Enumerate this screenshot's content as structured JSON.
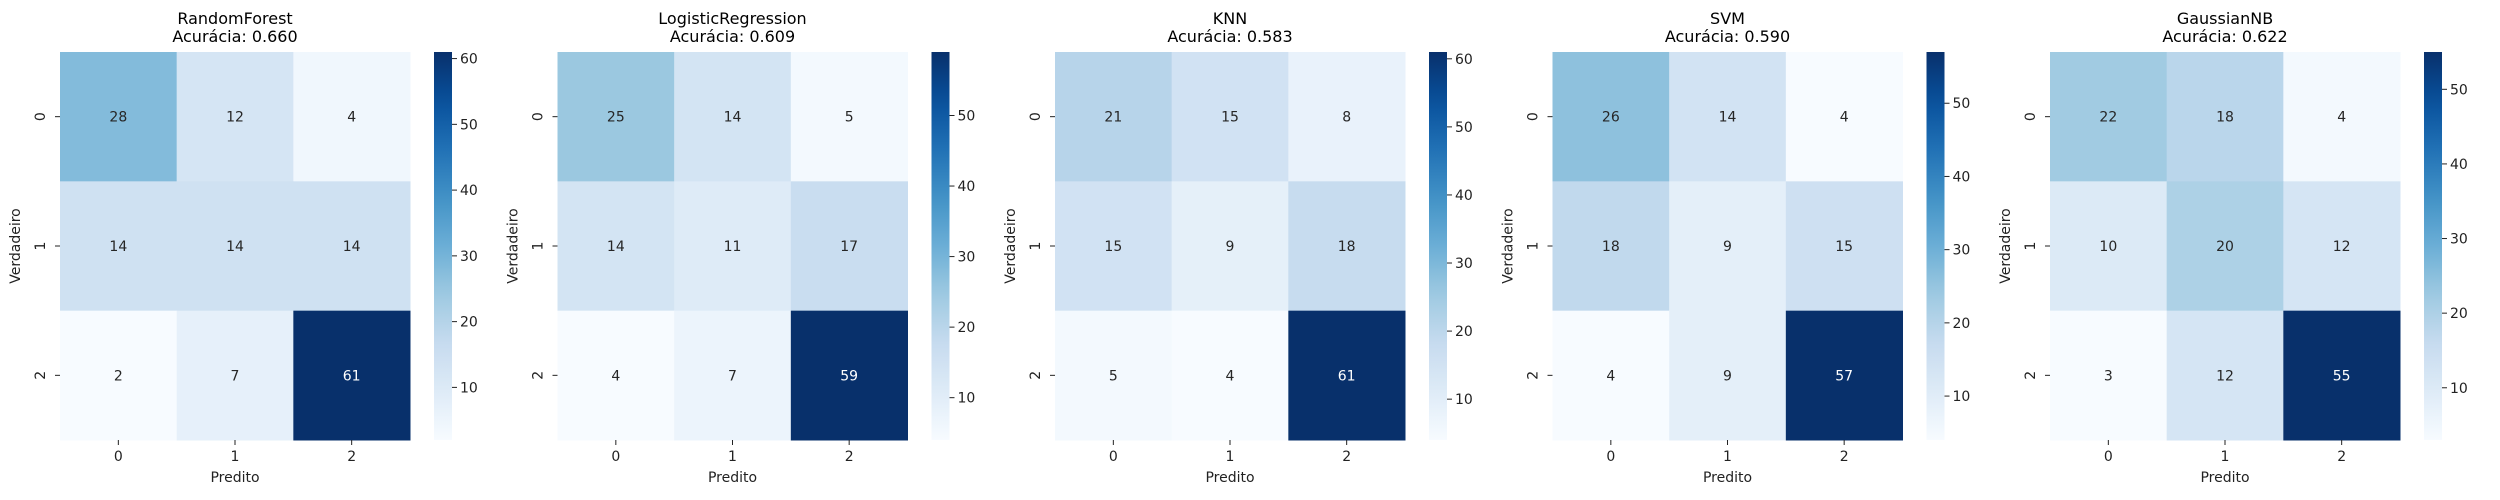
{
  "chart_data": [
    {
      "type": "heatmap",
      "title": "RandomForest",
      "subtitle": "Acurácia: 0.660",
      "xlabel": "Predito",
      "ylabel": "Verdadeiro",
      "x_categories": [
        "0",
        "1",
        "2"
      ],
      "y_categories": [
        "0",
        "1",
        "2"
      ],
      "values": [
        [
          28,
          12,
          4
        ],
        [
          14,
          14,
          14
        ],
        [
          2,
          7,
          61
        ]
      ],
      "colormap": "Blues",
      "colorbar_range": [
        2,
        61
      ],
      "colorbar_ticks": [
        10,
        20,
        30,
        40,
        50,
        60
      ]
    },
    {
      "type": "heatmap",
      "title": "LogisticRegression",
      "subtitle": "Acurácia: 0.609",
      "xlabel": "Predito",
      "ylabel": "Verdadeiro",
      "x_categories": [
        "0",
        "1",
        "2"
      ],
      "y_categories": [
        "0",
        "1",
        "2"
      ],
      "values": [
        [
          25,
          14,
          5
        ],
        [
          14,
          11,
          17
        ],
        [
          4,
          7,
          59
        ]
      ],
      "colormap": "Blues",
      "colorbar_range": [
        4,
        59
      ],
      "colorbar_ticks": [
        10,
        20,
        30,
        40,
        50
      ]
    },
    {
      "type": "heatmap",
      "title": "KNN",
      "subtitle": "Acurácia: 0.583",
      "xlabel": "Predito",
      "ylabel": "Verdadeiro",
      "x_categories": [
        "0",
        "1",
        "2"
      ],
      "y_categories": [
        "0",
        "1",
        "2"
      ],
      "values": [
        [
          21,
          15,
          8
        ],
        [
          15,
          9,
          18
        ],
        [
          5,
          4,
          61
        ]
      ],
      "colormap": "Blues",
      "colorbar_range": [
        4,
        61
      ],
      "colorbar_ticks": [
        10,
        20,
        30,
        40,
        50,
        60
      ]
    },
    {
      "type": "heatmap",
      "title": "SVM",
      "subtitle": "Acurácia: 0.590",
      "xlabel": "Predito",
      "ylabel": "Verdadeiro",
      "x_categories": [
        "0",
        "1",
        "2"
      ],
      "y_categories": [
        "0",
        "1",
        "2"
      ],
      "values": [
        [
          26,
          14,
          4
        ],
        [
          18,
          9,
          15
        ],
        [
          4,
          9,
          57
        ]
      ],
      "colormap": "Blues",
      "colorbar_range": [
        4,
        57
      ],
      "colorbar_ticks": [
        10,
        20,
        30,
        40,
        50
      ]
    },
    {
      "type": "heatmap",
      "title": "GaussianNB",
      "subtitle": "Acurácia: 0.622",
      "xlabel": "Predito",
      "ylabel": "Verdadeiro",
      "x_categories": [
        "0",
        "1",
        "2"
      ],
      "y_categories": [
        "0",
        "1",
        "2"
      ],
      "values": [
        [
          22,
          18,
          4
        ],
        [
          10,
          20,
          12
        ],
        [
          3,
          12,
          55
        ]
      ],
      "colormap": "Blues",
      "colorbar_range": [
        3,
        55
      ],
      "colorbar_ticks": [
        10,
        20,
        30,
        40,
        50
      ]
    }
  ]
}
